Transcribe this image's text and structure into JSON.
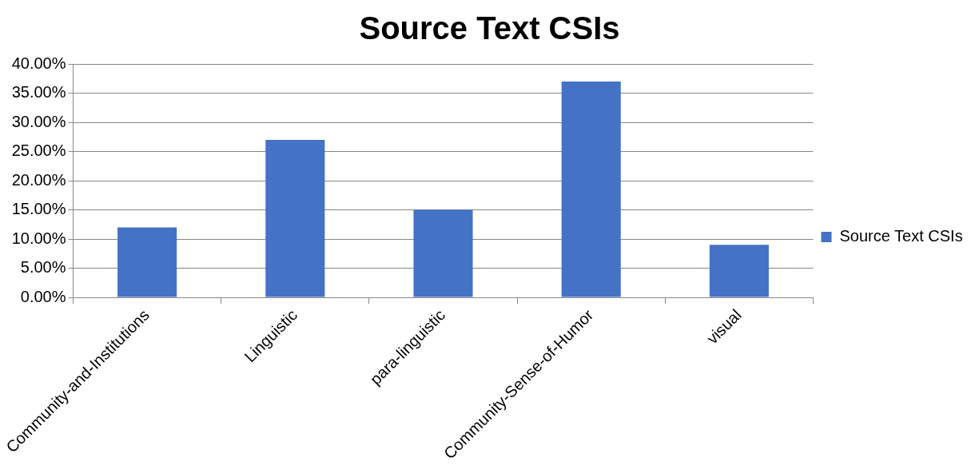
{
  "chart_data": {
    "type": "bar",
    "title": "Source Text CSIs",
    "categories": [
      "Community-and-Institutions",
      "Linguistic",
      "para-linguistic",
      "Community-Sense-of-Humor",
      "visual"
    ],
    "series": [
      {
        "name": "Source Text CSIs",
        "color": "#4472c4",
        "values": [
          12,
          27,
          15,
          37,
          9
        ]
      }
    ],
    "ylim": [
      0,
      40
    ],
    "yticks": [
      {
        "value": 0,
        "label": "0.00%"
      },
      {
        "value": 5,
        "label": "5.00%"
      },
      {
        "value": 10,
        "label": "10.00%"
      },
      {
        "value": 15,
        "label": "15.00%"
      },
      {
        "value": 20,
        "label": "20.00%"
      },
      {
        "value": 25,
        "label": "25.00%"
      },
      {
        "value": 30,
        "label": "30.00%"
      },
      {
        "value": 35,
        "label": "35.00%"
      },
      {
        "value": 40,
        "label": "40.00%"
      }
    ],
    "grid": "y",
    "legend": "right"
  }
}
